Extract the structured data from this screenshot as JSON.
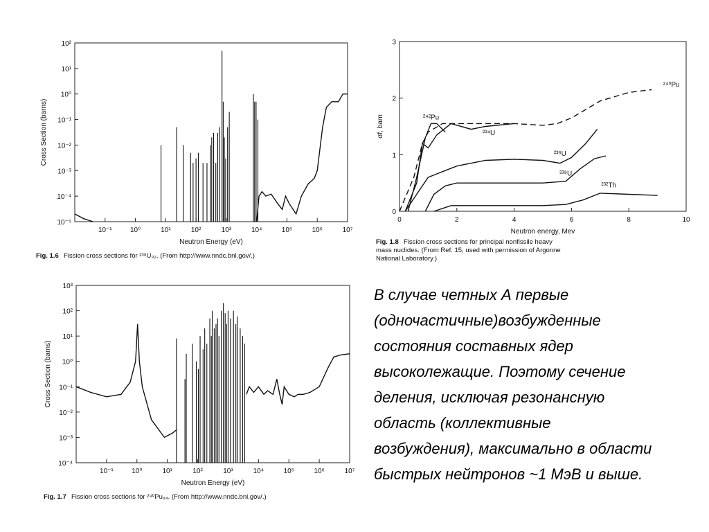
{
  "chart_data": [
    {
      "type": "line",
      "xlog": true,
      "ylog": true,
      "color": "#111",
      "xlabel": "Neutron Energy (eV)",
      "ylabel": "Cross Section (barns)",
      "caption": {
        "label": "Fig. 1.6",
        "text": "Fission cross sections for ²³⁸U₉₂. (From http://www.nndc.bnl.gov/.)"
      },
      "xlim": [
        0.01,
        10000000
      ],
      "ylim": [
        1e-05,
        100
      ],
      "xticks": [
        {
          "value": 0.1,
          "label": "10⁻¹"
        },
        {
          "value": 1,
          "label": "10⁰"
        },
        {
          "value": 10,
          "label": "10¹"
        },
        {
          "value": 100,
          "label": "10²"
        },
        {
          "value": 1000,
          "label": "10³"
        },
        {
          "value": 10000,
          "label": "10⁴"
        },
        {
          "value": 100000,
          "label": "10⁵"
        },
        {
          "value": 1000000,
          "label": "10⁶"
        },
        {
          "value": 10000000,
          "label": "10⁷"
        }
      ],
      "yticks": [
        {
          "value": 1e-05,
          "label": "10⁻⁵"
        },
        {
          "value": 0.0001,
          "label": "10⁻⁴"
        },
        {
          "value": 0.001,
          "label": "10⁻³"
        },
        {
          "value": 0.01,
          "label": "10⁻²"
        },
        {
          "value": 0.1,
          "label": "10⁻¹"
        },
        {
          "value": 1,
          "label": "10⁰"
        },
        {
          "value": 10,
          "label": "10¹"
        },
        {
          "value": 100,
          "label": "10²"
        }
      ],
      "series": [
        {
          "x": [
            0.01,
            0.02,
            0.04
          ],
          "values": [
            2e-05,
            1.3e-05,
            1e-05
          ]
        },
        {
          "x": [
            10000,
            12000,
            15000,
            20000,
            30000,
            50000,
            70000,
            90000,
            120000,
            200000,
            300000,
            500000,
            800000,
            1000000,
            1500000,
            2000000,
            3000000,
            5000000,
            7000000,
            10000000
          ],
          "values": [
            1e-05,
            0.0001,
            0.00015,
            0.0001,
            0.00012,
            5e-05,
            3e-05,
            0.0001,
            5e-05,
            2e-05,
            0.0001,
            0.0003,
            0.0005,
            0.001,
            0.05,
            0.3,
            0.5,
            0.5,
            1,
            1
          ]
        }
      ],
      "spikes": {
        "x": [
          7,
          23,
          38,
          66,
          80,
          100,
          120,
          170,
          230,
          300,
          330,
          380,
          450,
          520,
          600,
          720,
          790,
          860,
          950,
          1100,
          1250,
          7800,
          8600,
          9600,
          11000
        ],
        "values": [
          0.01,
          0.05,
          0.01,
          0.005,
          0.002,
          0.003,
          0.005,
          0.002,
          0.002,
          0.01,
          0.02,
          0.03,
          0.002,
          0.03,
          0.05,
          50,
          0.5,
          0.02,
          0.003,
          0.05,
          0.2,
          1,
          0.5,
          0.5,
          0.1
        ]
      }
    },
    {
      "type": "line",
      "color": "#111",
      "xlabel": "Neutron energy, Mev",
      "ylabel": "σf, barn",
      "caption": {
        "label": "Fig. 1.8",
        "text": [
          "Fission cross sections for principal nonfissile heavy",
          "mass nuclides. (From Ref. 15; used with permission of Argonne",
          "National Laboratory.)"
        ]
      },
      "xlim": [
        0,
        10
      ],
      "ylim": [
        0,
        3
      ],
      "xticks": [
        0,
        2,
        4,
        6,
        8,
        10
      ],
      "yticks": [
        0,
        1,
        2,
        3
      ],
      "series": [
        {
          "name": "²⁴⁰Pu",
          "dash": true,
          "x": [
            0,
            0.5,
            0.8,
            1,
            1.5,
            2,
            3,
            4,
            5,
            5.5,
            6,
            7,
            8,
            8.8
          ],
          "values": [
            0,
            0.6,
            1.2,
            1.4,
            1.55,
            1.55,
            1.55,
            1.55,
            1.52,
            1.55,
            1.65,
            1.95,
            2.1,
            2.15
          ]
        },
        {
          "name": "²⁴²Pu",
          "x": [
            0.3,
            0.6,
            0.9,
            1.1,
            1.3,
            1.6
          ],
          "values": [
            0,
            0.6,
            1.3,
            1.55,
            1.55,
            1.4
          ]
        },
        {
          "name": "²³⁴U",
          "x": [
            0.2,
            0.6,
            0.8,
            1,
            1.3,
            1.8,
            2.5,
            3,
            4
          ],
          "values": [
            0,
            0.5,
            1.2,
            1.12,
            1.35,
            1.55,
            1.45,
            1.5,
            1.55
          ]
        },
        {
          "name": "²³⁶U",
          "x": [
            0.2,
            0.6,
            1,
            1.5,
            2,
            3,
            4,
            5,
            5.6,
            6,
            6.5,
            6.9
          ],
          "values": [
            0,
            0.3,
            0.6,
            0.7,
            0.8,
            0.9,
            0.92,
            0.9,
            0.85,
            0.95,
            1.2,
            1.45
          ]
        },
        {
          "name": "²³⁸U",
          "x": [
            0.9,
            1.2,
            1.6,
            2,
            3,
            4,
            5,
            5.8,
            6.3,
            6.8,
            7.2
          ],
          "values": [
            0,
            0.3,
            0.45,
            0.5,
            0.5,
            0.5,
            0.5,
            0.53,
            0.75,
            0.93,
            0.98
          ]
        },
        {
          "name": "²³²Th",
          "x": [
            1.2,
            1.5,
            1.8,
            2.5,
            4,
            5,
            5.8,
            6.4,
            7,
            8,
            9
          ],
          "values": [
            0,
            0.05,
            0.1,
            0.1,
            0.1,
            0.1,
            0.12,
            0.2,
            0.32,
            0.3,
            0.28
          ]
        }
      ]
    },
    {
      "type": "line",
      "xlog": true,
      "ylog": true,
      "color": "#111",
      "xlabel": "Neutron Energy (eV)",
      "ylabel": "Cross Section (barns)",
      "caption": {
        "label": "Fig. 1.7",
        "text": "Fission cross sections for ²⁴⁰Pu₉₄. (From http://www.nndc.bnl.gov/.)"
      },
      "xlim": [
        0.01,
        10000000
      ],
      "ylim": [
        0.0001,
        1000
      ],
      "xticks": [
        {
          "value": 0.1,
          "label": "10⁻¹"
        },
        {
          "value": 1,
          "label": "10⁰"
        },
        {
          "value": 10,
          "label": "10¹"
        },
        {
          "value": 100,
          "label": "10²"
        },
        {
          "value": 1000,
          "label": "10³"
        },
        {
          "value": 10000,
          "label": "10⁴"
        },
        {
          "value": 100000,
          "label": "10⁵"
        },
        {
          "value": 1000000,
          "label": "10⁶"
        },
        {
          "value": 10000000,
          "label": "10⁷"
        }
      ],
      "yticks": [
        {
          "value": 0.0001,
          "label": "10⁻⁴"
        },
        {
          "value": 0.001,
          "label": "10⁻³"
        },
        {
          "value": 0.01,
          "label": "10⁻²"
        },
        {
          "value": 0.1,
          "label": "10⁻¹"
        },
        {
          "value": 1,
          "label": "10⁰"
        },
        {
          "value": 10,
          "label": "10¹"
        },
        {
          "value": 100,
          "label": "10²"
        },
        {
          "value": 1000,
          "label": "10³"
        }
      ],
      "series": [
        {
          "x": [
            0.01,
            0.03,
            0.1,
            0.3,
            0.6,
            0.9,
            1.05,
            1.2,
            1.5,
            3,
            8,
            15,
            20
          ],
          "values": [
            0.1,
            0.06,
            0.04,
            0.05,
            0.15,
            1,
            30,
            1,
            0.1,
            0.005,
            0.001,
            0.0015,
            0.002
          ]
        },
        {
          "x": [
            4000,
            5000,
            7000,
            10000,
            15000,
            20000,
            30000,
            40000,
            50000,
            60000,
            70000,
            100000,
            150000,
            200000,
            300000,
            500000,
            1000000,
            2000000,
            3000000,
            5000000,
            10000000
          ],
          "values": [
            0.05,
            0.1,
            0.06,
            0.1,
            0.05,
            0.07,
            0.05,
            0.2,
            0.05,
            0.02,
            0.1,
            0.05,
            0.04,
            0.05,
            0.05,
            0.06,
            0.1,
            0.6,
            1.5,
            1.8,
            2
          ]
        }
      ],
      "spikes": {
        "x": [
          20,
          38,
          42,
          67,
          90,
          105,
          120,
          150,
          170,
          200,
          250,
          280,
          300,
          350,
          400,
          450,
          500,
          600,
          700,
          800,
          900,
          1000,
          1200,
          1500,
          1800,
          2000,
          2500,
          3000,
          3500
        ],
        "values": [
          8,
          0.2,
          2,
          5,
          1,
          0.5,
          10,
          3,
          20,
          5,
          50,
          10,
          100,
          20,
          30,
          50,
          10,
          100,
          200,
          80,
          30,
          100,
          50,
          100,
          30,
          60,
          20,
          10,
          5
        ]
      }
    }
  ],
  "slide_text": [
    "В случае четных А первые",
    "(одночастичные)возбужденные",
    "состояния составных ядер",
    "высоколежащие. Поэтому сечение",
    "деления, исключая резонансную",
    "область (коллективные",
    "возбуждения), максимально в области",
    "быстрых нейтронов ~1 МэВ и выше."
  ]
}
